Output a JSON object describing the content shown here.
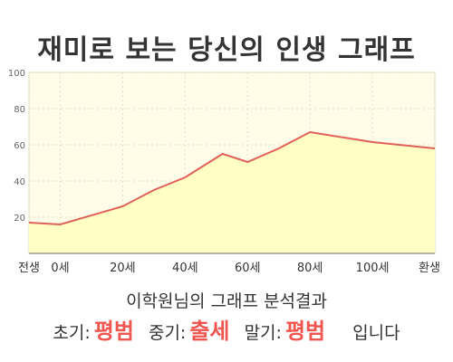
{
  "title": "재미로 보는 당신의 인생 그래프",
  "subtitle": "이학원님의 그래프 분석결과",
  "result": {
    "early_label": "초기:",
    "early_value": "평범",
    "mid_label": "중기:",
    "mid_value": "출세",
    "late_label": "말기:",
    "late_value": "평범",
    "tail": "입니다"
  },
  "colors": {
    "line": "#e0605a",
    "fill": "#ffffc4",
    "plot_bg": "#fffde8",
    "grid": "#e2e2b8",
    "accent": "#f0554f"
  },
  "chart_data": {
    "type": "area",
    "x": [
      -10,
      0,
      20,
      30,
      40,
      52,
      60,
      70,
      80,
      100,
      120
    ],
    "values": [
      17,
      16,
      26,
      35,
      42,
      55,
      50.5,
      58,
      67,
      61.5,
      58
    ],
    "xticks": [
      {
        "value": -10,
        "label": "전생"
      },
      {
        "value": 0,
        "label": "0세"
      },
      {
        "value": 20,
        "label": "20세"
      },
      {
        "value": 40,
        "label": "40세"
      },
      {
        "value": 60,
        "label": "60세"
      },
      {
        "value": 80,
        "label": "80세"
      },
      {
        "value": 100,
        "label": "100세"
      },
      {
        "value": 120,
        "label": "환생"
      }
    ],
    "yticks": [
      20,
      40,
      60,
      80,
      100
    ],
    "xlim": [
      -10,
      120
    ],
    "ylim": [
      0,
      100
    ],
    "grid": true
  }
}
